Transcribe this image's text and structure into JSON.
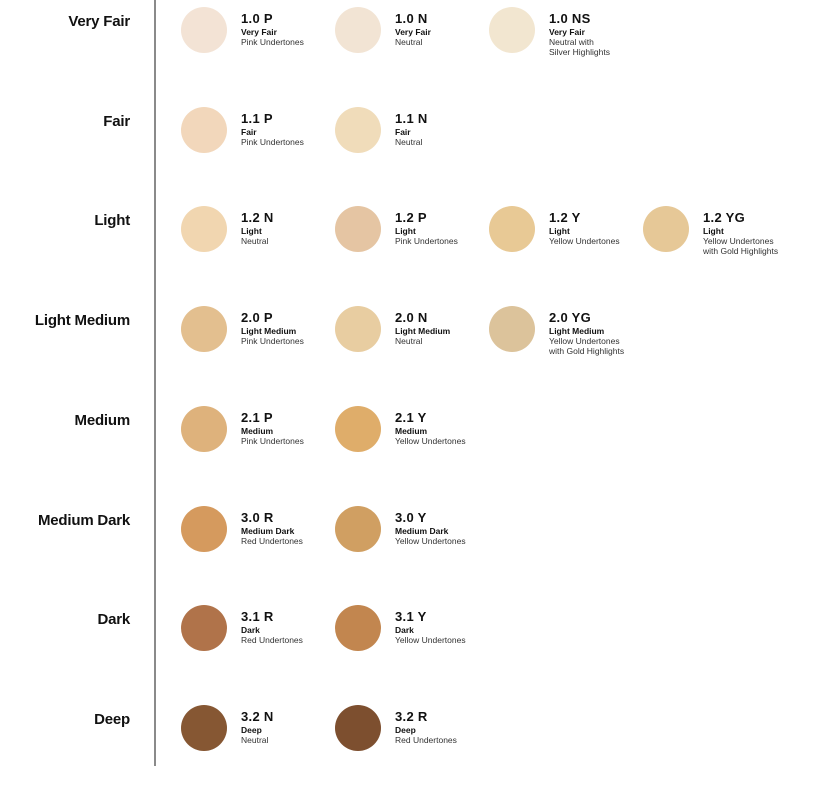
{
  "rows": [
    {
      "category": "Very Fair",
      "shades": [
        {
          "code": "1.0 P",
          "level": "Very Fair",
          "description": "Pink Undertones",
          "color": "#f3e3d5"
        },
        {
          "code": "1.0 N",
          "level": "Very Fair",
          "description": "Neutral",
          "color": "#f2e4d4"
        },
        {
          "code": "1.0 NS",
          "level": "Very Fair",
          "description": "Neutral with\nSilver Highlights",
          "color": "#f2e6d0"
        }
      ]
    },
    {
      "category": "Fair",
      "shades": [
        {
          "code": "1.1 P",
          "level": "Fair",
          "description": "Pink Undertones",
          "color": "#f2d7bb"
        },
        {
          "code": "1.1 N",
          "level": "Fair",
          "description": "Neutral",
          "color": "#f0dcba"
        }
      ]
    },
    {
      "category": "Light",
      "shades": [
        {
          "code": "1.2 N",
          "level": "Light",
          "description": "Neutral",
          "color": "#f1d6b0"
        },
        {
          "code": "1.2 P",
          "level": "Light",
          "description": "Pink Undertones",
          "color": "#e5c5a3"
        },
        {
          "code": "1.2 Y",
          "level": "Light",
          "description": "Yellow Undertones",
          "color": "#e8c995"
        },
        {
          "code": "1.2 YG",
          "level": "Light",
          "description": "Yellow Undertones\nwith Gold Highlights",
          "color": "#e6c897"
        }
      ]
    },
    {
      "category": "Light Medium",
      "shades": [
        {
          "code": "2.0 P",
          "level": "Light Medium",
          "description": "Pink Undertones",
          "color": "#e3bf8f"
        },
        {
          "code": "2.0 N",
          "level": "Light Medium",
          "description": "Neutral",
          "color": "#e8cda1"
        },
        {
          "code": "2.0 YG",
          "level": "Light Medium",
          "description": "Yellow Undertones\nwith Gold Highlights",
          "color": "#dcc39b"
        }
      ]
    },
    {
      "category": "Medium",
      "shades": [
        {
          "code": "2.1 P",
          "level": "Medium",
          "description": "Pink Undertones",
          "color": "#deb27c"
        },
        {
          "code": "2.1 Y",
          "level": "Medium",
          "description": "Yellow Undertones",
          "color": "#dfad6a"
        }
      ]
    },
    {
      "category": "Medium Dark",
      "shades": [
        {
          "code": "3.0 R",
          "level": "Medium Dark",
          "description": "Red Undertones",
          "color": "#d59a5e"
        },
        {
          "code": "3.0 Y",
          "level": "Medium Dark",
          "description": "Yellow Undertones",
          "color": "#d09f62"
        }
      ]
    },
    {
      "category": "Dark",
      "shades": [
        {
          "code": "3.1 R",
          "level": "Dark",
          "description": "Red Undertones",
          "color": "#b0734a"
        },
        {
          "code": "3.1 Y",
          "level": "Dark",
          "description": "Yellow Undertones",
          "color": "#c2864f"
        }
      ]
    },
    {
      "category": "Deep",
      "shades": [
        {
          "code": "3.2 N",
          "level": "Deep",
          "description": "Neutral",
          "color": "#865733"
        },
        {
          "code": "3.2 R",
          "level": "Deep",
          "description": "Red Undertones",
          "color": "#7d4f2f"
        }
      ]
    }
  ]
}
